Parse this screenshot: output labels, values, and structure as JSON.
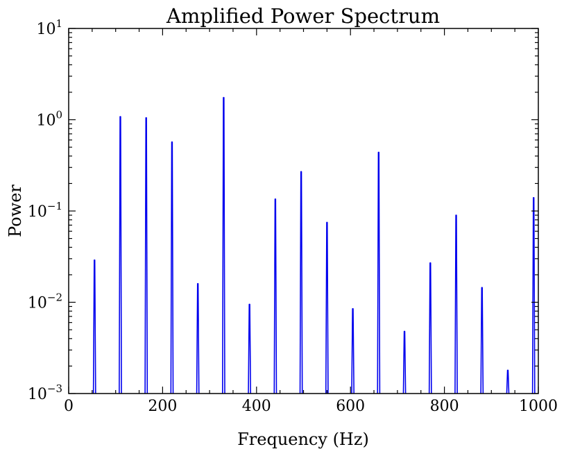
{
  "chart_data": {
    "type": "line",
    "title": "Amplified Power Spectrum",
    "xlabel": "Frequency (Hz)",
    "ylabel": "Power",
    "xlim": [
      0,
      1000
    ],
    "ylim": [
      0.001,
      10
    ],
    "yscale": "log",
    "grid": false,
    "x_ticks": [
      {
        "value": 0,
        "label": "0"
      },
      {
        "value": 200,
        "label": "200"
      },
      {
        "value": 400,
        "label": "400"
      },
      {
        "value": 600,
        "label": "600"
      },
      {
        "value": 800,
        "label": "800"
      },
      {
        "value": 1000,
        "label": "1000"
      }
    ],
    "y_ticks": [
      {
        "value": 0.001,
        "base": "10",
        "exp": "−3"
      },
      {
        "value": 0.01,
        "base": "10",
        "exp": "−2"
      },
      {
        "value": 0.1,
        "base": "10",
        "exp": "−1"
      },
      {
        "value": 1,
        "base": "10",
        "exp": "0"
      },
      {
        "value": 10,
        "base": "10",
        "exp": "1"
      }
    ],
    "series": [
      {
        "color": "#0000ee",
        "peaks": [
          {
            "x": 55,
            "y": 0.029
          },
          {
            "x": 110,
            "y": 1.08
          },
          {
            "x": 165,
            "y": 1.05
          },
          {
            "x": 220,
            "y": 0.57
          },
          {
            "x": 275,
            "y": 0.016
          },
          {
            "x": 330,
            "y": 1.75
          },
          {
            "x": 385,
            "y": 0.0095
          },
          {
            "x": 440,
            "y": 0.135
          },
          {
            "x": 495,
            "y": 0.27
          },
          {
            "x": 550,
            "y": 0.075
          },
          {
            "x": 605,
            "y": 0.0085
          },
          {
            "x": 660,
            "y": 0.44
          },
          {
            "x": 715,
            "y": 0.0048
          },
          {
            "x": 770,
            "y": 0.027
          },
          {
            "x": 825,
            "y": 0.09
          },
          {
            "x": 880,
            "y": 0.0145
          },
          {
            "x": 935,
            "y": 0.0018
          },
          {
            "x": 990,
            "y": 0.14
          }
        ]
      }
    ]
  }
}
